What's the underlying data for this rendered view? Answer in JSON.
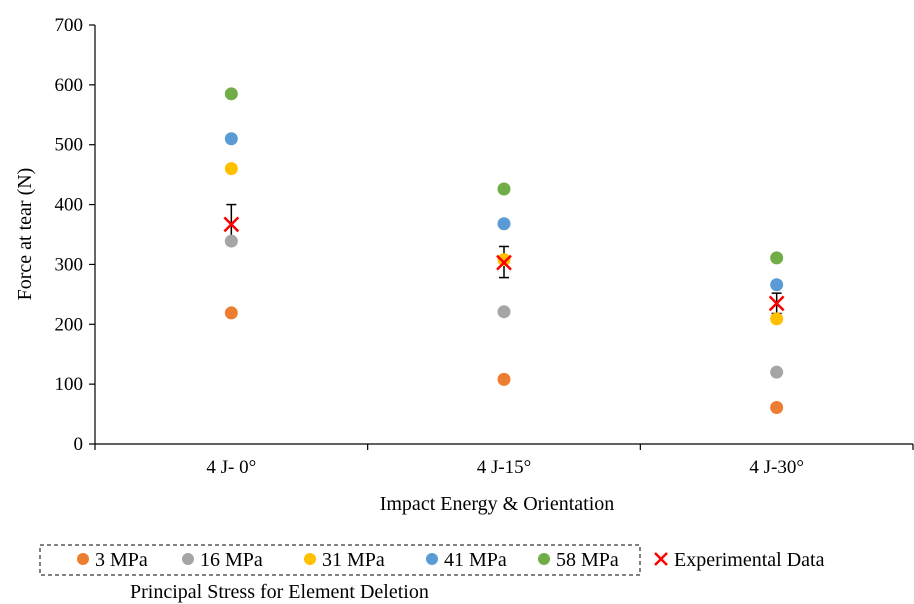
{
  "chart_data": {
    "type": "scatter",
    "categories": [
      "4 J- 0°",
      "4 J-15°",
      "4 J-30°"
    ],
    "xlabel": "Impact Energy & Orientation",
    "ylabel": "Force at tear (N)",
    "ylim": [
      0,
      700
    ],
    "yticks": [
      0,
      100,
      200,
      300,
      400,
      500,
      600,
      700
    ],
    "grid": false,
    "series": [
      {
        "name": "3 MPa",
        "color": "#ED7D31",
        "values": [
          219,
          108,
          61
        ]
      },
      {
        "name": "16 MPa",
        "color": "#A5A5A5",
        "values": [
          339,
          221,
          120
        ]
      },
      {
        "name": "31 MPa",
        "color": "#FFC000",
        "values": [
          460,
          308,
          209
        ]
      },
      {
        "name": "41 MPa",
        "color": "#5B9BD5",
        "values": [
          510,
          368,
          266
        ]
      },
      {
        "name": "58 MPa",
        "color": "#70AD47",
        "values": [
          585,
          426,
          311
        ]
      }
    ],
    "experimental": {
      "name": "Experimental Data",
      "color": "#FF0000",
      "marker": "x",
      "values": [
        367,
        303,
        235
      ],
      "error_low": [
        333,
        278,
        218
      ],
      "error_high": [
        400,
        330,
        252
      ]
    },
    "legend_position": "bottom",
    "legend_title": "Principal Stress for Element Deletion"
  }
}
